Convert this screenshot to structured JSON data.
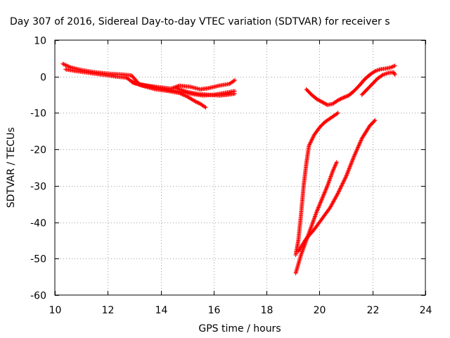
{
  "chart_data": {
    "type": "scatter",
    "title": "Day 307 of 2016, Sidereal Day-to-day VTEC variation (SDTVAR) for receiver s",
    "xlabel": "GPS time / hours",
    "ylabel": "SDTVAR / TECUs",
    "xlim": [
      10,
      24
    ],
    "ylim": [
      -60,
      10
    ],
    "xticks": [
      10,
      12,
      14,
      16,
      18,
      20,
      22,
      24
    ],
    "yticks": [
      10,
      0,
      -10,
      -20,
      -30,
      -40,
      -50,
      -60
    ],
    "grid": true,
    "marker": "plus",
    "color": "#ff0000",
    "series": [
      {
        "points": [
          [
            10.3,
            3.5
          ],
          [
            10.6,
            2.5
          ],
          [
            11.0,
            1.8
          ],
          [
            11.5,
            1.2
          ],
          [
            12.0,
            0.8
          ],
          [
            12.5,
            0.6
          ],
          [
            12.9,
            0.3
          ],
          [
            13.2,
            -2.2
          ],
          [
            13.6,
            -2.8
          ],
          [
            14.0,
            -3.3
          ],
          [
            14.4,
            -3.8
          ],
          [
            14.8,
            -4.2
          ],
          [
            15.2,
            -4.8
          ],
          [
            15.6,
            -5.2
          ],
          [
            16.0,
            -5.0
          ],
          [
            16.4,
            -4.5
          ],
          [
            16.8,
            -4.0
          ]
        ]
      },
      {
        "points": [
          [
            10.4,
            2.0
          ],
          [
            10.8,
            1.5
          ],
          [
            11.3,
            1.0
          ],
          [
            11.8,
            0.5
          ],
          [
            12.3,
            0.0
          ],
          [
            12.7,
            -0.3
          ],
          [
            13.0,
            -1.8
          ],
          [
            13.5,
            -2.5
          ],
          [
            14.0,
            -3.0
          ],
          [
            14.4,
            -3.3
          ],
          [
            14.7,
            -2.5
          ],
          [
            15.1,
            -2.8
          ],
          [
            15.5,
            -3.5
          ],
          [
            15.8,
            -3.2
          ],
          [
            16.2,
            -2.5
          ],
          [
            16.6,
            -2.0
          ],
          [
            16.8,
            -1.0
          ]
        ]
      },
      {
        "points": [
          [
            12.9,
            -1.5
          ],
          [
            13.3,
            -2.5
          ],
          [
            13.8,
            -3.5
          ],
          [
            14.3,
            -4.0
          ],
          [
            14.7,
            -4.5
          ],
          [
            15.0,
            -5.5
          ],
          [
            15.3,
            -6.8
          ],
          [
            15.5,
            -7.5
          ],
          [
            15.7,
            -8.5
          ]
        ]
      },
      {
        "points": [
          [
            14.6,
            -3.2
          ],
          [
            15.0,
            -4.2
          ],
          [
            15.4,
            -4.8
          ],
          [
            15.8,
            -5.0
          ],
          [
            16.2,
            -5.2
          ],
          [
            16.5,
            -5.0
          ],
          [
            16.8,
            -4.7
          ]
        ]
      },
      {
        "points": [
          [
            19.5,
            -3.5
          ],
          [
            19.7,
            -5.0
          ],
          [
            19.9,
            -6.2
          ],
          [
            20.1,
            -7.0
          ],
          [
            20.3,
            -7.8
          ],
          [
            20.5,
            -7.5
          ],
          [
            20.7,
            -6.5
          ],
          [
            20.9,
            -5.8
          ],
          [
            21.1,
            -5.2
          ],
          [
            21.3,
            -4.0
          ],
          [
            21.5,
            -2.5
          ],
          [
            21.7,
            -0.8
          ],
          [
            21.9,
            0.5
          ],
          [
            22.1,
            1.5
          ],
          [
            22.3,
            2.0
          ],
          [
            22.5,
            2.2
          ],
          [
            22.7,
            2.5
          ],
          [
            22.85,
            3.0
          ]
        ]
      },
      {
        "points": [
          [
            21.6,
            -5.0
          ],
          [
            21.8,
            -3.5
          ],
          [
            22.0,
            -2.0
          ],
          [
            22.2,
            -0.5
          ],
          [
            22.4,
            0.5
          ],
          [
            22.6,
            1.0
          ],
          [
            22.8,
            1.2
          ],
          [
            22.85,
            0.5
          ]
        ]
      },
      {
        "points": [
          [
            19.1,
            -49.0
          ],
          [
            19.2,
            -45.0
          ],
          [
            19.3,
            -38.0
          ],
          [
            19.4,
            -30.0
          ],
          [
            19.5,
            -24.0
          ],
          [
            19.6,
            -19.0
          ],
          [
            19.8,
            -16.0
          ],
          [
            20.0,
            -14.0
          ],
          [
            20.2,
            -12.5
          ],
          [
            20.4,
            -11.5
          ],
          [
            20.6,
            -10.5
          ],
          [
            20.7,
            -10.0
          ]
        ]
      },
      {
        "points": [
          [
            19.1,
            -54.0
          ],
          [
            19.3,
            -49.0
          ],
          [
            19.5,
            -45.0
          ],
          [
            19.7,
            -41.0
          ],
          [
            19.9,
            -37.0
          ],
          [
            20.1,
            -33.5
          ],
          [
            20.3,
            -30.0
          ],
          [
            20.5,
            -26.0
          ],
          [
            20.65,
            -23.5
          ]
        ]
      },
      {
        "points": [
          [
            19.2,
            -48.0
          ],
          [
            19.5,
            -44.5
          ],
          [
            19.8,
            -42.0
          ],
          [
            20.1,
            -39.0
          ],
          [
            20.4,
            -36.0
          ],
          [
            20.7,
            -32.0
          ],
          [
            21.0,
            -27.5
          ],
          [
            21.3,
            -22.0
          ],
          [
            21.6,
            -17.0
          ],
          [
            21.9,
            -13.5
          ],
          [
            22.1,
            -12.0
          ]
        ]
      }
    ]
  }
}
